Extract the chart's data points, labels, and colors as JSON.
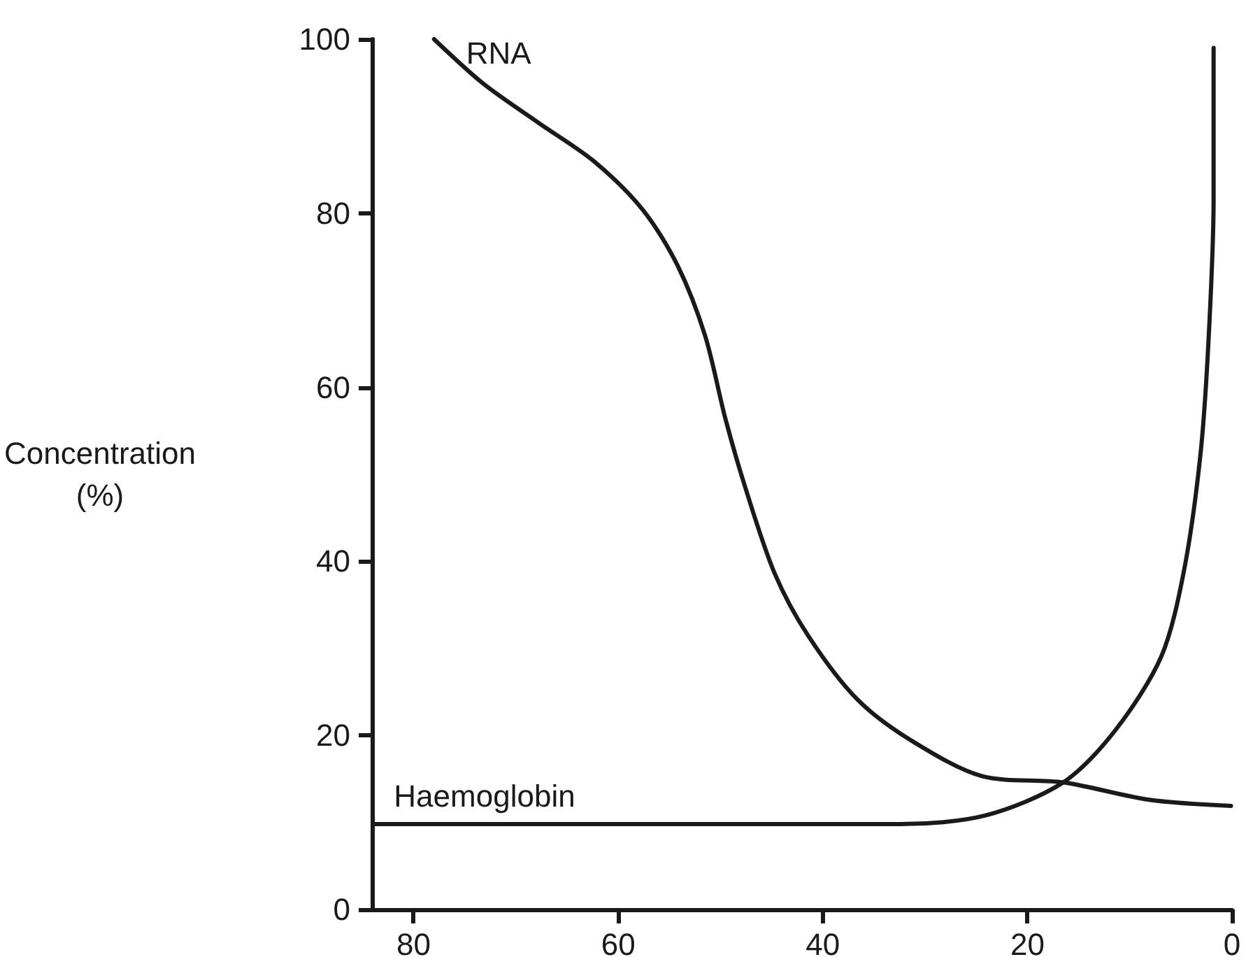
{
  "chart_data": {
    "type": "line",
    "ylabel": "Concentration\n(%)",
    "xlim": [
      84,
      0
    ],
    "xticks": [
      80,
      60,
      40,
      20,
      0
    ],
    "ylim": [
      0,
      100
    ],
    "yticks": [
      0,
      20,
      40,
      60,
      80,
      100
    ],
    "grid": false,
    "marker": "none",
    "line_style": "solid",
    "series": [
      {
        "name": "RNA",
        "color": "#1a1a1a",
        "x": [
          78,
          73.2,
          67.8,
          62.4,
          57.6,
          54.2,
          51.5,
          49.5,
          47.5,
          44.7,
          41.4,
          36.6,
          31.2,
          24.4,
          16.5,
          8.1,
          0.1
        ],
        "values": [
          100,
          94.9,
          90.4,
          86,
          80.4,
          74,
          65.9,
          56.3,
          48.2,
          38.6,
          31.4,
          24.1,
          19.3,
          15.3,
          14.6,
          12.6,
          11.9
        ]
      },
      {
        "name": "Haemoglobin",
        "color": "#1a1a1a",
        "x": [
          84,
          60,
          40,
          32.4,
          24.1,
          16.5,
          11.4,
          6.9,
          4.7,
          3.1,
          2.3,
          1.8,
          1.8
        ],
        "values": [
          9.8,
          9.8,
          9.8,
          9.8,
          10.8,
          14.6,
          20.6,
          29.1,
          38.9,
          52.1,
          65.3,
          81.7,
          99
        ]
      }
    ]
  }
}
